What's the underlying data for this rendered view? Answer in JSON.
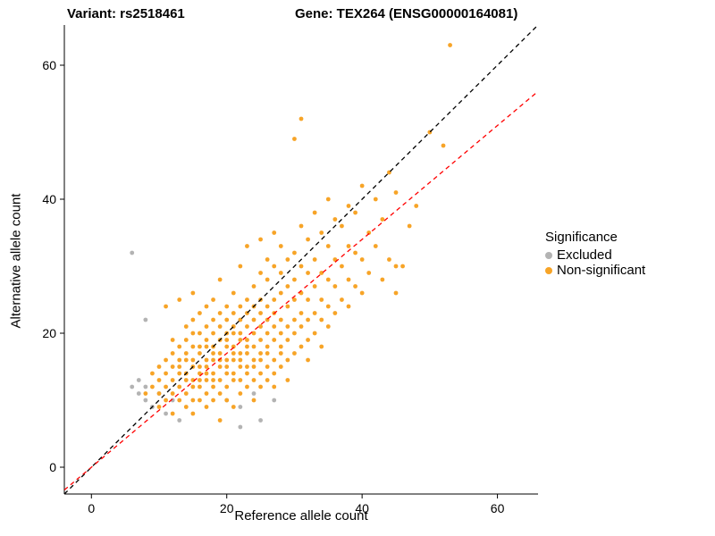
{
  "titles": {
    "variant": "Variant: rs2518461",
    "gene": "Gene: TEX264 (ENSG00000164081)"
  },
  "axes": {
    "x_label": "Reference allele count",
    "y_label": "Alternative allele count",
    "x_ticks": [
      0,
      20,
      40,
      60
    ],
    "y_ticks": [
      0,
      20,
      40,
      60
    ]
  },
  "legend": {
    "title": "Significance",
    "items": [
      {
        "label": "Excluded",
        "color": "#B3B3B3"
      },
      {
        "label": "Non-significant",
        "color": "#F7A427"
      }
    ]
  },
  "chart_data": {
    "type": "scatter",
    "title": "Variant: rs2518461 / Gene: TEX264 (ENSG00000164081)",
    "xlabel": "Reference allele count",
    "ylabel": "Alternative allele count",
    "xlim": [
      -4,
      66
    ],
    "ylim": [
      -4,
      66
    ],
    "grid": false,
    "legend_position": "right",
    "lines": [
      {
        "name": "identity",
        "slope": 1.0,
        "intercept": 0,
        "color": "#000000",
        "dash": true
      },
      {
        "name": "fit",
        "slope": 0.85,
        "intercept": 0,
        "color": "#FF0000",
        "dash": true
      }
    ],
    "series": [
      {
        "name": "Excluded",
        "color": "#B3B3B3",
        "points": [
          [
            6,
            32
          ],
          [
            8,
            22
          ],
          [
            6,
            12
          ],
          [
            7,
            13
          ],
          [
            7,
            11
          ],
          [
            8,
            10
          ],
          [
            8,
            12
          ],
          [
            9,
            9
          ],
          [
            10,
            11
          ],
          [
            11,
            8
          ],
          [
            12,
            10
          ],
          [
            13,
            7
          ],
          [
            20,
            10
          ],
          [
            22,
            9
          ],
          [
            24,
            11
          ],
          [
            25,
            7
          ],
          [
            27,
            10
          ],
          [
            22,
            6
          ]
        ]
      },
      {
        "name": "Non-significant",
        "color": "#F7A427",
        "points": [
          [
            8,
            11
          ],
          [
            9,
            12
          ],
          [
            9,
            14
          ],
          [
            10,
            9
          ],
          [
            10,
            11
          ],
          [
            10,
            13
          ],
          [
            10,
            15
          ],
          [
            11,
            10
          ],
          [
            11,
            12
          ],
          [
            11,
            14
          ],
          [
            11,
            16
          ],
          [
            11,
            24
          ],
          [
            12,
            8
          ],
          [
            12,
            11
          ],
          [
            12,
            13
          ],
          [
            12,
            15
          ],
          [
            12,
            17
          ],
          [
            12,
            19
          ],
          [
            13,
            10
          ],
          [
            13,
            12
          ],
          [
            13,
            14
          ],
          [
            13,
            15
          ],
          [
            13,
            16
          ],
          [
            13,
            18
          ],
          [
            13,
            25
          ],
          [
            14,
            9
          ],
          [
            14,
            11
          ],
          [
            14,
            13
          ],
          [
            14,
            14
          ],
          [
            14,
            16
          ],
          [
            14,
            17
          ],
          [
            14,
            19
          ],
          [
            14,
            21
          ],
          [
            15,
            8
          ],
          [
            15,
            10
          ],
          [
            15,
            12
          ],
          [
            15,
            13
          ],
          [
            15,
            15
          ],
          [
            15,
            16
          ],
          [
            15,
            18
          ],
          [
            15,
            20
          ],
          [
            15,
            22
          ],
          [
            15,
            26
          ],
          [
            16,
            10
          ],
          [
            16,
            12
          ],
          [
            16,
            13
          ],
          [
            16,
            14
          ],
          [
            16,
            15
          ],
          [
            16,
            17
          ],
          [
            16,
            18
          ],
          [
            16,
            20
          ],
          [
            16,
            23
          ],
          [
            17,
            9
          ],
          [
            17,
            11
          ],
          [
            17,
            13
          ],
          [
            17,
            14
          ],
          [
            17,
            15
          ],
          [
            17,
            16
          ],
          [
            17,
            18
          ],
          [
            17,
            19
          ],
          [
            17,
            21
          ],
          [
            17,
            24
          ],
          [
            18,
            10
          ],
          [
            18,
            12
          ],
          [
            18,
            13
          ],
          [
            18,
            14
          ],
          [
            18,
            16
          ],
          [
            18,
            17
          ],
          [
            18,
            18
          ],
          [
            18,
            20
          ],
          [
            18,
            22
          ],
          [
            18,
            25
          ],
          [
            19,
            7
          ],
          [
            19,
            11
          ],
          [
            19,
            13
          ],
          [
            19,
            15
          ],
          [
            19,
            16
          ],
          [
            19,
            17
          ],
          [
            19,
            19
          ],
          [
            19,
            21
          ],
          [
            19,
            23
          ],
          [
            19,
            28
          ],
          [
            20,
            10
          ],
          [
            20,
            12
          ],
          [
            20,
            14
          ],
          [
            20,
            15
          ],
          [
            20,
            16
          ],
          [
            20,
            18
          ],
          [
            20,
            19
          ],
          [
            20,
            20
          ],
          [
            20,
            22
          ],
          [
            20,
            24
          ],
          [
            21,
            9
          ],
          [
            21,
            13
          ],
          [
            21,
            14
          ],
          [
            21,
            16
          ],
          [
            21,
            17
          ],
          [
            21,
            18
          ],
          [
            21,
            20
          ],
          [
            21,
            21
          ],
          [
            21,
            23
          ],
          [
            21,
            26
          ],
          [
            22,
            11
          ],
          [
            22,
            13
          ],
          [
            22,
            15
          ],
          [
            22,
            16
          ],
          [
            22,
            17
          ],
          [
            22,
            19
          ],
          [
            22,
            20
          ],
          [
            22,
            22
          ],
          [
            22,
            24
          ],
          [
            22,
            30
          ],
          [
            23,
            12
          ],
          [
            23,
            14
          ],
          [
            23,
            15
          ],
          [
            23,
            17
          ],
          [
            23,
            18
          ],
          [
            23,
            19
          ],
          [
            23,
            21
          ],
          [
            23,
            23
          ],
          [
            23,
            25
          ],
          [
            23,
            33
          ],
          [
            24,
            10
          ],
          [
            24,
            13
          ],
          [
            24,
            15
          ],
          [
            24,
            16
          ],
          [
            24,
            18
          ],
          [
            24,
            20
          ],
          [
            24,
            22
          ],
          [
            24,
            24
          ],
          [
            24,
            27
          ],
          [
            25,
            12
          ],
          [
            25,
            14
          ],
          [
            25,
            16
          ],
          [
            25,
            17
          ],
          [
            25,
            19
          ],
          [
            25,
            21
          ],
          [
            25,
            23
          ],
          [
            25,
            25
          ],
          [
            25,
            29
          ],
          [
            25,
            34
          ],
          [
            26,
            13
          ],
          [
            26,
            15
          ],
          [
            26,
            17
          ],
          [
            26,
            18
          ],
          [
            26,
            20
          ],
          [
            26,
            22
          ],
          [
            26,
            24
          ],
          [
            26,
            28
          ],
          [
            26,
            31
          ],
          [
            27,
            12
          ],
          [
            27,
            14
          ],
          [
            27,
            16
          ],
          [
            27,
            19
          ],
          [
            27,
            21
          ],
          [
            27,
            23
          ],
          [
            27,
            25
          ],
          [
            27,
            30
          ],
          [
            27,
            35
          ],
          [
            28,
            15
          ],
          [
            28,
            17
          ],
          [
            28,
            18
          ],
          [
            28,
            20
          ],
          [
            28,
            22
          ],
          [
            28,
            26
          ],
          [
            28,
            29
          ],
          [
            28,
            33
          ],
          [
            29,
            13
          ],
          [
            29,
            16
          ],
          [
            29,
            19
          ],
          [
            29,
            21
          ],
          [
            29,
            24
          ],
          [
            29,
            27
          ],
          [
            29,
            31
          ],
          [
            30,
            17
          ],
          [
            30,
            20
          ],
          [
            30,
            22
          ],
          [
            30,
            25
          ],
          [
            30,
            28
          ],
          [
            30,
            32
          ],
          [
            30,
            49
          ],
          [
            31,
            18
          ],
          [
            31,
            21
          ],
          [
            31,
            23
          ],
          [
            31,
            26
          ],
          [
            31,
            30
          ],
          [
            31,
            36
          ],
          [
            31,
            52
          ],
          [
            32,
            16
          ],
          [
            32,
            19
          ],
          [
            32,
            22
          ],
          [
            32,
            25
          ],
          [
            32,
            29
          ],
          [
            32,
            34
          ],
          [
            33,
            20
          ],
          [
            33,
            23
          ],
          [
            33,
            27
          ],
          [
            33,
            31
          ],
          [
            33,
            38
          ],
          [
            34,
            18
          ],
          [
            34,
            22
          ],
          [
            34,
            25
          ],
          [
            34,
            29
          ],
          [
            34,
            35
          ],
          [
            35,
            21
          ],
          [
            35,
            24
          ],
          [
            35,
            28
          ],
          [
            35,
            33
          ],
          [
            35,
            40
          ],
          [
            36,
            23
          ],
          [
            36,
            27
          ],
          [
            36,
            31
          ],
          [
            36,
            37
          ],
          [
            37,
            25
          ],
          [
            37,
            30
          ],
          [
            37,
            36
          ],
          [
            38,
            24
          ],
          [
            38,
            28
          ],
          [
            38,
            33
          ],
          [
            38,
            39
          ],
          [
            39,
            27
          ],
          [
            39,
            32
          ],
          [
            39,
            38
          ],
          [
            40,
            26
          ],
          [
            40,
            31
          ],
          [
            40,
            42
          ],
          [
            41,
            29
          ],
          [
            41,
            35
          ],
          [
            42,
            33
          ],
          [
            42,
            40
          ],
          [
            43,
            28
          ],
          [
            43,
            37
          ],
          [
            44,
            31
          ],
          [
            44,
            44
          ],
          [
            45,
            26
          ],
          [
            45,
            30
          ],
          [
            45,
            41
          ],
          [
            46,
            30
          ],
          [
            47,
            36
          ],
          [
            48,
            39
          ],
          [
            50,
            50
          ],
          [
            52,
            48
          ],
          [
            53,
            63
          ]
        ]
      }
    ]
  }
}
